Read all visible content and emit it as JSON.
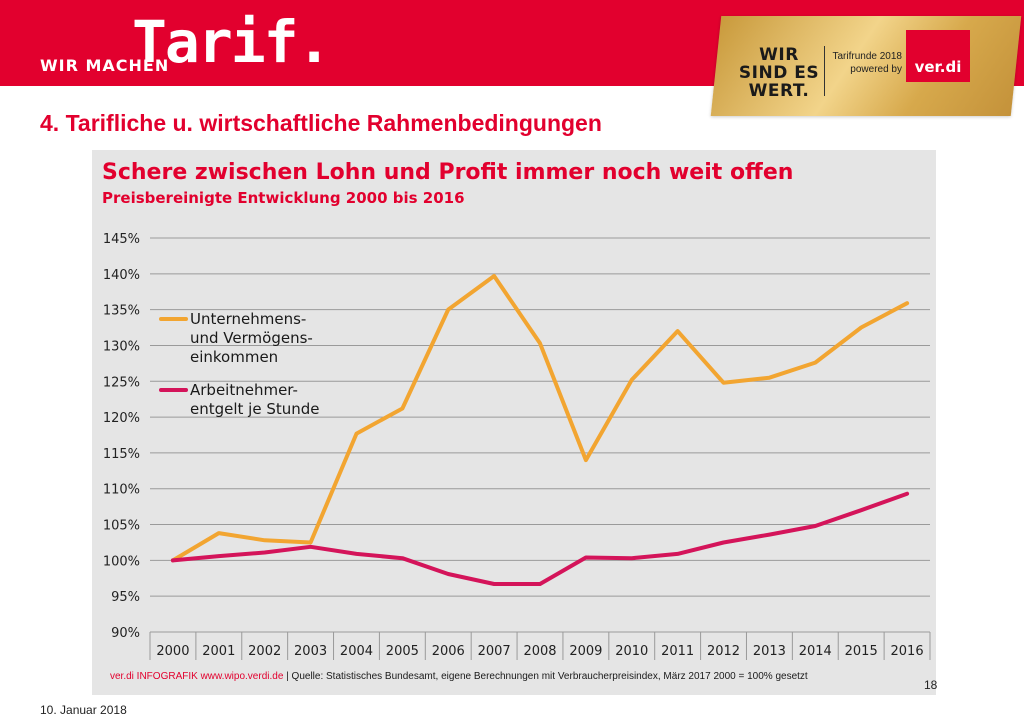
{
  "header": {
    "brand_small": "WIR MACHEN",
    "brand_big": "Tarif.",
    "slogan_lines": [
      "WIR",
      "SIND ES",
      "WERT."
    ],
    "tarifrunde_lines": [
      "Tarifrunde 2018",
      "powered by"
    ],
    "logo_text": "ver.di"
  },
  "slide_title": "4. Tarifliche u. wirtschaftliche Rahmenbedingungen",
  "footer": {
    "brand": "ver.di INFOGRAFIK www.wipo.verdi.de",
    "source": "| Quelle: Statistisches Bundesamt, eigene Berechnungen mit Verbraucherpreisindex, März 2017 2000 = 100% gesetzt"
  },
  "page_number": "18",
  "date": "10. Januar 2018",
  "colors": {
    "brand_red": "#e2002e",
    "series_orange": "#f2a531",
    "series_magenta": "#d4145a",
    "panel_gray": "#e5e5e5"
  },
  "chart_data": {
    "type": "line",
    "title": "Schere zwischen Lohn und Profit immer noch weit offen",
    "subtitle": "Preisbereinigte Entwicklung 2000 bis 2016",
    "categories": [
      "2000",
      "2001",
      "2002",
      "2003",
      "2004",
      "2005",
      "2006",
      "2007",
      "2008",
      "2009",
      "2010",
      "2011",
      "2012",
      "2013",
      "2014",
      "2015",
      "2016"
    ],
    "series": [
      {
        "name": "Unternehmens- und Vermögens- einkommen",
        "legend_lines": [
          "Unternehmens-",
          "und Vermögens-",
          "einkommen"
        ],
        "color": "#f2a531",
        "values": [
          100,
          103.8,
          102.8,
          102.5,
          117.7,
          121.2,
          135,
          139.7,
          130.3,
          114,
          125.2,
          132,
          124.8,
          125.5,
          127.6,
          132.5,
          135.9
        ]
      },
      {
        "name": "Arbeitnehmer- entgelt je Stunde",
        "legend_lines": [
          "Arbeitnehmer-",
          "entgelt je Stunde"
        ],
        "color": "#d4145a",
        "values": [
          100,
          100.6,
          101.1,
          101.9,
          100.9,
          100.3,
          98.1,
          96.7,
          96.7,
          100.4,
          100.3,
          100.9,
          102.5,
          103.6,
          104.8,
          107,
          109.3
        ]
      }
    ],
    "ylim": [
      90,
      145
    ],
    "yticks": [
      90,
      95,
      100,
      105,
      110,
      115,
      120,
      125,
      130,
      135,
      140,
      145
    ],
    "ytick_labels": [
      "90%",
      "95%",
      "100%",
      "105%",
      "110%",
      "115%",
      "120%",
      "125%",
      "130%",
      "135%",
      "140%",
      "145%"
    ],
    "grid": true,
    "legend_position": "left"
  }
}
